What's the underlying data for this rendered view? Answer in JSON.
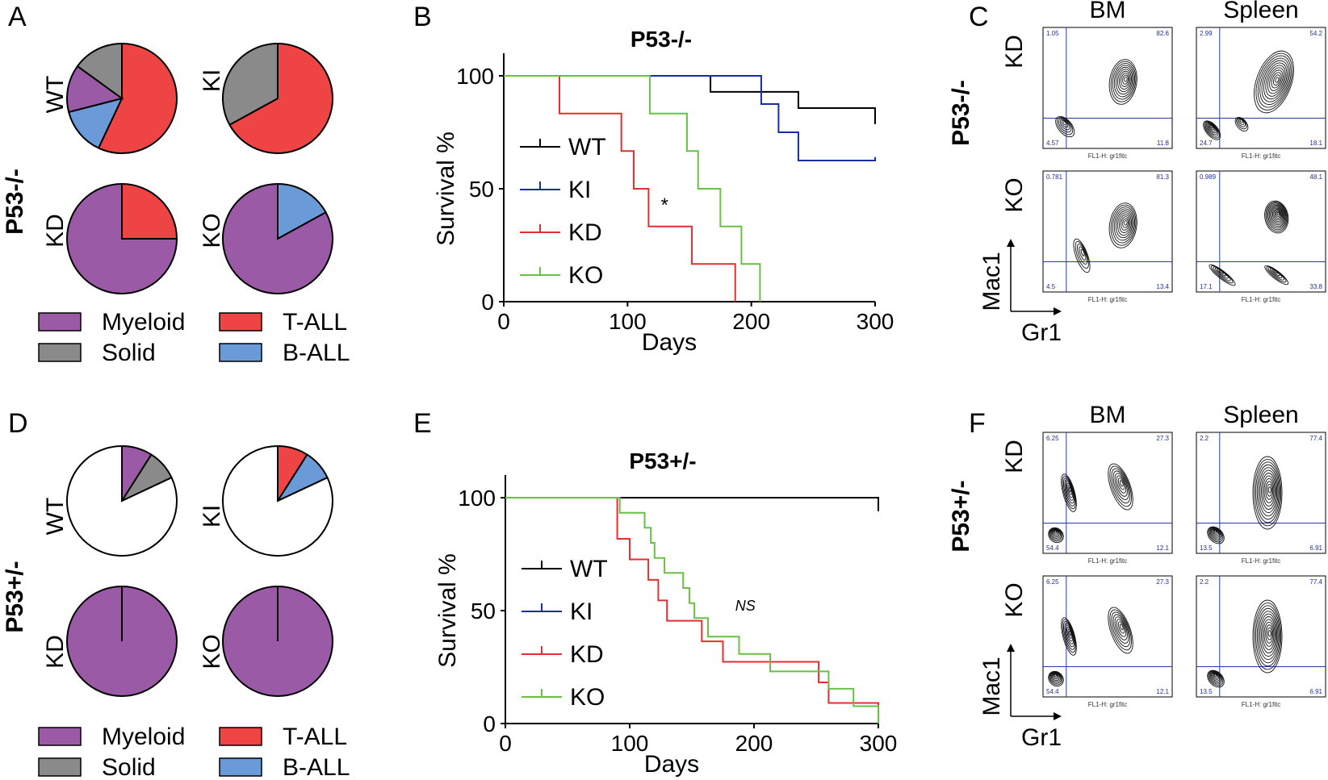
{
  "panel_letters": [
    "A",
    "B",
    "C",
    "D",
    "E",
    "F"
  ],
  "groups": [
    "WT",
    "KI",
    "KD",
    "KO"
  ],
  "colors": {
    "Myeloid": "#9b5aa6",
    "Solid": "#8a8a8a",
    "T-ALL": "#ee4444",
    "B-ALL": "#6a9bd8",
    "None": "#ffffff"
  },
  "line_colors": {
    "WT": "#000000",
    "KI": "#1a2f9f",
    "KD": "#e03030",
    "KO": "#6ac044"
  },
  "legend_labels": [
    "Myeloid",
    "T-ALL",
    "Solid",
    "B-ALL"
  ],
  "row_labels": {
    "p53_null": "P53-/-",
    "p53_het": "P53+/-"
  },
  "flow_labels": {
    "bm": "BM",
    "spleen": "Spleen",
    "mac1": "Mac1",
    "gr1": "Gr1",
    "x_axis_text": "FL1-H: gr1fitc"
  },
  "flow_quadrants": {
    "top": {
      "KD_BM": [
        "1.05",
        "82.6",
        "4.57",
        "11.8"
      ],
      "KD_Spleen": [
        "2.99",
        "54.2",
        "24.7",
        "18.1"
      ],
      "KO_BM": [
        "0.781",
        "81.3",
        "4.5",
        "13.4"
      ],
      "KO_Spleen": [
        "0.989",
        "48.1",
        "17.1",
        "33.8"
      ]
    },
    "bottom": {
      "KD_BM": [
        "6.25",
        "27.3",
        "54.4",
        "12.1"
      ],
      "KD_Spleen": [
        "2.2",
        "77.4",
        "13.5",
        "6.91"
      ],
      "KO_BM": [
        "6.25",
        "27.3",
        "54.4",
        "12.1"
      ],
      "KO_Spleen": [
        "2.2",
        "77.4",
        "13.5",
        "6.91"
      ]
    }
  },
  "chart_data": [
    {
      "type": "pie",
      "panel": "A",
      "title": "P53-/-",
      "pies": [
        {
          "group": "WT",
          "slices": [
            {
              "label": "T-ALL",
              "value": 57
            },
            {
              "label": "B-ALL",
              "value": 14
            },
            {
              "label": "Myeloid",
              "value": 14
            },
            {
              "label": "Solid",
              "value": 15
            }
          ]
        },
        {
          "group": "KI",
          "slices": [
            {
              "label": "T-ALL",
              "value": 67
            },
            {
              "label": "Solid",
              "value": 33
            }
          ]
        },
        {
          "group": "KD",
          "slices": [
            {
              "label": "T-ALL",
              "value": 25
            },
            {
              "label": "Myeloid",
              "value": 75
            }
          ]
        },
        {
          "group": "KO",
          "slices": [
            {
              "label": "B-ALL",
              "value": 17
            },
            {
              "label": "Myeloid",
              "value": 83
            }
          ]
        }
      ]
    },
    {
      "type": "line",
      "panel": "B",
      "title": "P53-/-",
      "xlabel": "Days",
      "ylabel": "Survival %",
      "xlim": [
        0,
        300
      ],
      "ylim": [
        0,
        100
      ],
      "xticks": [
        "0",
        "100",
        "200",
        "300"
      ],
      "yticks": [
        "0",
        "50",
        "100"
      ],
      "annotation": "*",
      "annotation_pos": [
        130,
        40
      ],
      "series": [
        {
          "name": "WT",
          "steps": [
            [
              0,
              100
            ],
            [
              167,
              100
            ],
            [
              167,
              92.9
            ],
            [
              238,
              92.9
            ],
            [
              238,
              85.7
            ],
            [
              300,
              85.7
            ],
            [
              300,
              78.6
            ]
          ]
        },
        {
          "name": "KI",
          "steps": [
            [
              0,
              100
            ],
            [
              208,
              100
            ],
            [
              208,
              87.5
            ],
            [
              222,
              87.5
            ],
            [
              222,
              75
            ],
            [
              238,
              75
            ],
            [
              238,
              62.5
            ],
            [
              300,
              62.5
            ],
            [
              300,
              64
            ]
          ]
        },
        {
          "name": "KD",
          "steps": [
            [
              0,
              100
            ],
            [
              45,
              100
            ],
            [
              45,
              83.3
            ],
            [
              95,
              83.3
            ],
            [
              95,
              66.7
            ],
            [
              105,
              66.7
            ],
            [
              105,
              50
            ],
            [
              117,
              50
            ],
            [
              117,
              33.3
            ],
            [
              152,
              33.3
            ],
            [
              152,
              16.7
            ],
            [
              187,
              16.7
            ],
            [
              187,
              0
            ]
          ]
        },
        {
          "name": "KO",
          "steps": [
            [
              0,
              100
            ],
            [
              118,
              100
            ],
            [
              118,
              83.3
            ],
            [
              148,
              83.3
            ],
            [
              148,
              66.7
            ],
            [
              157,
              66.7
            ],
            [
              157,
              50
            ],
            [
              175,
              50
            ],
            [
              175,
              33.3
            ],
            [
              192,
              33.3
            ],
            [
              192,
              16.7
            ],
            [
              207,
              16.7
            ],
            [
              207,
              0
            ]
          ]
        }
      ]
    },
    {
      "type": "pie",
      "panel": "D",
      "title": "P53+/-",
      "pies": [
        {
          "group": "WT",
          "slices": [
            {
              "label": "Myeloid",
              "value": 9
            },
            {
              "label": "Solid",
              "value": 9
            },
            {
              "label": "None",
              "value": 82
            }
          ]
        },
        {
          "group": "KI",
          "slices": [
            {
              "label": "T-ALL",
              "value": 9
            },
            {
              "label": "B-ALL",
              "value": 9
            },
            {
              "label": "None",
              "value": 82
            }
          ]
        },
        {
          "group": "KD",
          "slices": [
            {
              "label": "Myeloid",
              "value": 100
            }
          ]
        },
        {
          "group": "KO",
          "slices": [
            {
              "label": "Myeloid",
              "value": 100
            }
          ]
        }
      ]
    },
    {
      "type": "line",
      "panel": "E",
      "title": "P53+/-",
      "xlabel": "Days",
      "ylabel": "Survival %",
      "xlim": [
        0,
        300
      ],
      "ylim": [
        0,
        100
      ],
      "xticks": [
        "0",
        "100",
        "200",
        "300"
      ],
      "yticks": [
        "0",
        "50",
        "100"
      ],
      "annotation": "NS",
      "annotation_pos": [
        193,
        50
      ],
      "series": [
        {
          "name": "WT",
          "steps": [
            [
              0,
              100
            ],
            [
              300,
              100
            ],
            [
              300,
              94
            ]
          ]
        },
        {
          "name": "KI",
          "steps": []
        },
        {
          "name": "KD",
          "steps": [
            [
              0,
              100
            ],
            [
              90,
              100
            ],
            [
              90,
              81.8
            ],
            [
              100,
              81.8
            ],
            [
              100,
              72.7
            ],
            [
              115,
              72.7
            ],
            [
              115,
              63.6
            ],
            [
              123,
              63.6
            ],
            [
              123,
              54.5
            ],
            [
              130,
              54.5
            ],
            [
              130,
              45.5
            ],
            [
              148,
              45.5
            ],
            [
              148,
              45.5
            ],
            [
              158,
              45.5
            ],
            [
              158,
              36.4
            ],
            [
              175,
              36.4
            ],
            [
              175,
              27.3
            ],
            [
              252,
              27.3
            ],
            [
              252,
              18.2
            ],
            [
              260,
              18.2
            ],
            [
              260,
              9.1
            ],
            [
              300,
              9.1
            ],
            [
              300,
              0
            ]
          ]
        },
        {
          "name": "KO",
          "steps": [
            [
              0,
              100
            ],
            [
              92,
              100
            ],
            [
              92,
              93.3
            ],
            [
              112,
              93.3
            ],
            [
              112,
              86.7
            ],
            [
              117,
              86.7
            ],
            [
              117,
              80
            ],
            [
              120,
              80
            ],
            [
              120,
              73.3
            ],
            [
              128,
              73.3
            ],
            [
              128,
              66.7
            ],
            [
              143,
              66.7
            ],
            [
              143,
              60
            ],
            [
              148,
              60
            ],
            [
              148,
              53.3
            ],
            [
              152,
              53.3
            ],
            [
              152,
              46.7
            ],
            [
              163,
              46.7
            ],
            [
              163,
              38.5
            ],
            [
              188,
              38.5
            ],
            [
              188,
              30.8
            ],
            [
              213,
              30.8
            ],
            [
              213,
              23.1
            ],
            [
              260,
              23.1
            ],
            [
              260,
              15.4
            ],
            [
              280,
              15.4
            ],
            [
              280,
              7.7
            ],
            [
              300,
              7.7
            ],
            [
              300,
              0
            ]
          ]
        }
      ]
    }
  ]
}
